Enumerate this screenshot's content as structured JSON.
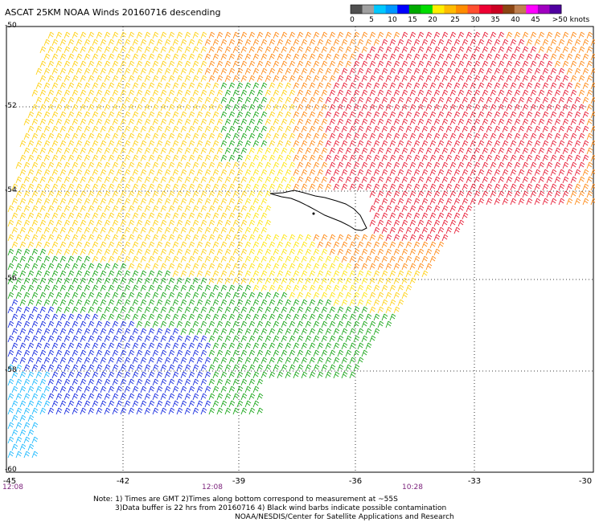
{
  "title": "ASCAT 25KM NOAA Winds 20160716 descending",
  "legend": {
    "labels": [
      "0",
      "5",
      "10",
      "15",
      "20",
      "25",
      "30",
      "35",
      "40",
      "45",
      ">50 knots"
    ],
    "colors": [
      "#505050",
      "#a0a0a0",
      "#00c8ff",
      "#0096ff",
      "#0000ff",
      "#00aa00",
      "#00dd00",
      "#ffee00",
      "#ffbb00",
      "#ff8c00",
      "#ff5030",
      "#ee0033",
      "#cc0022",
      "#8b4513",
      "#c08050",
      "#ff00ff",
      "#a000c0",
      "#5000a0"
    ]
  },
  "axes": {
    "x_ticks": [
      "-45",
      "-42",
      "-39",
      "-36",
      "-33",
      "-30"
    ],
    "y_ticks": [
      "-50",
      "-52",
      "-54",
      "-56",
      "-58",
      "-60"
    ]
  },
  "times": [
    "12:08",
    "12:08",
    "10:28"
  ],
  "notes": [
    "Note: 1) Times are GMT 2)Times along bottom correspond to measurement at ~55S",
    "3)Data buffer is 22 hrs from 20160716 4) Black wind barbs indicate possible contamination",
    "NOAA/NESDIS/Center for Satellite Applications and Research"
  ]
}
